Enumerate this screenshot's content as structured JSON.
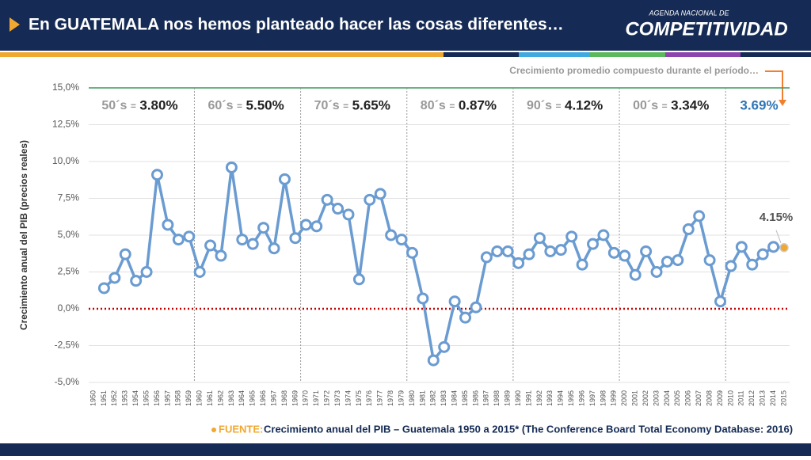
{
  "header": {
    "title": "En GUATEMALA nos hemos planteado hacer las cosas diferentes…",
    "logo_top": "AGENDA NACIONAL DE",
    "logo_main": "COMPETITIVIDAD"
  },
  "chart_data": {
    "type": "line",
    "y_label": "Crecimiento anual del PIB (precios reales)",
    "annotation": "Crecimiento promedio compuesto durante el período…",
    "separator": "=",
    "decades": [
      {
        "label": "50´s",
        "value": "3.80%"
      },
      {
        "label": "60´s",
        "value": "5.50%"
      },
      {
        "label": "70´s",
        "value": "5.65%"
      },
      {
        "label": "80´s",
        "value": "0.87%"
      },
      {
        "label": "90´s",
        "value": "4.12%"
      },
      {
        "label": "00´s",
        "value": "3.34%"
      }
    ],
    "overall": "3.69%",
    "x": [
      1950,
      1951,
      1952,
      1953,
      1954,
      1955,
      1956,
      1957,
      1958,
      1959,
      1960,
      1961,
      1962,
      1963,
      1964,
      1965,
      1966,
      1967,
      1968,
      1969,
      1970,
      1971,
      1972,
      1973,
      1974,
      1975,
      1976,
      1977,
      1978,
      1979,
      1980,
      1981,
      1982,
      1983,
      1984,
      1985,
      1986,
      1987,
      1988,
      1989,
      1990,
      1991,
      1992,
      1993,
      1994,
      1995,
      1996,
      1997,
      1998,
      1999,
      2000,
      2001,
      2002,
      2003,
      2004,
      2005,
      2006,
      2007,
      2008,
      2009,
      2010,
      2011,
      2012,
      2013,
      2014,
      2015
    ],
    "series": [
      {
        "name": "Crecimiento anual del PIB",
        "color": "#6a9bd1",
        "highlight_color": "#f0a830",
        "values": [
          null,
          1.4,
          2.1,
          3.7,
          1.9,
          2.5,
          9.1,
          5.7,
          4.7,
          4.9,
          2.5,
          4.3,
          3.6,
          9.6,
          4.7,
          4.4,
          5.5,
          4.1,
          8.8,
          4.8,
          5.7,
          5.6,
          7.4,
          6.8,
          6.4,
          2.0,
          7.4,
          7.8,
          5.0,
          4.7,
          3.8,
          0.7,
          -3.5,
          -2.6,
          0.5,
          -0.6,
          0.1,
          3.5,
          3.9,
          3.9,
          3.1,
          3.7,
          4.8,
          3.9,
          4.0,
          4.9,
          3.0,
          4.4,
          5.0,
          3.8,
          3.6,
          2.3,
          3.9,
          2.5,
          3.2,
          3.3,
          5.4,
          6.3,
          3.3,
          0.5,
          2.9,
          4.2,
          3.0,
          3.7,
          4.2,
          4.15
        ],
        "last_label": "4.15%"
      }
    ],
    "ylim": [
      -5,
      15
    ],
    "yticks": [
      {
        "value": -5,
        "label": "-5,0%"
      },
      {
        "value": -2.5,
        "label": "-2,5%"
      },
      {
        "value": 0,
        "label": "0,0%"
      },
      {
        "value": 2.5,
        "label": "2,5%"
      },
      {
        "value": 5,
        "label": "5,0%"
      },
      {
        "value": 7.5,
        "label": "7,5%"
      },
      {
        "value": 10,
        "label": "10,0%"
      },
      {
        "value": 12.5,
        "label": "12,5%"
      },
      {
        "value": 15,
        "label": "15,0%"
      }
    ],
    "grid": true
  },
  "footer": {
    "source_label": "FUENTE:",
    "source_text": "Crecimiento anual del PIB – Guatemala 1950 a 2015* (The Conference Board Total Economy Database: 2016)"
  }
}
